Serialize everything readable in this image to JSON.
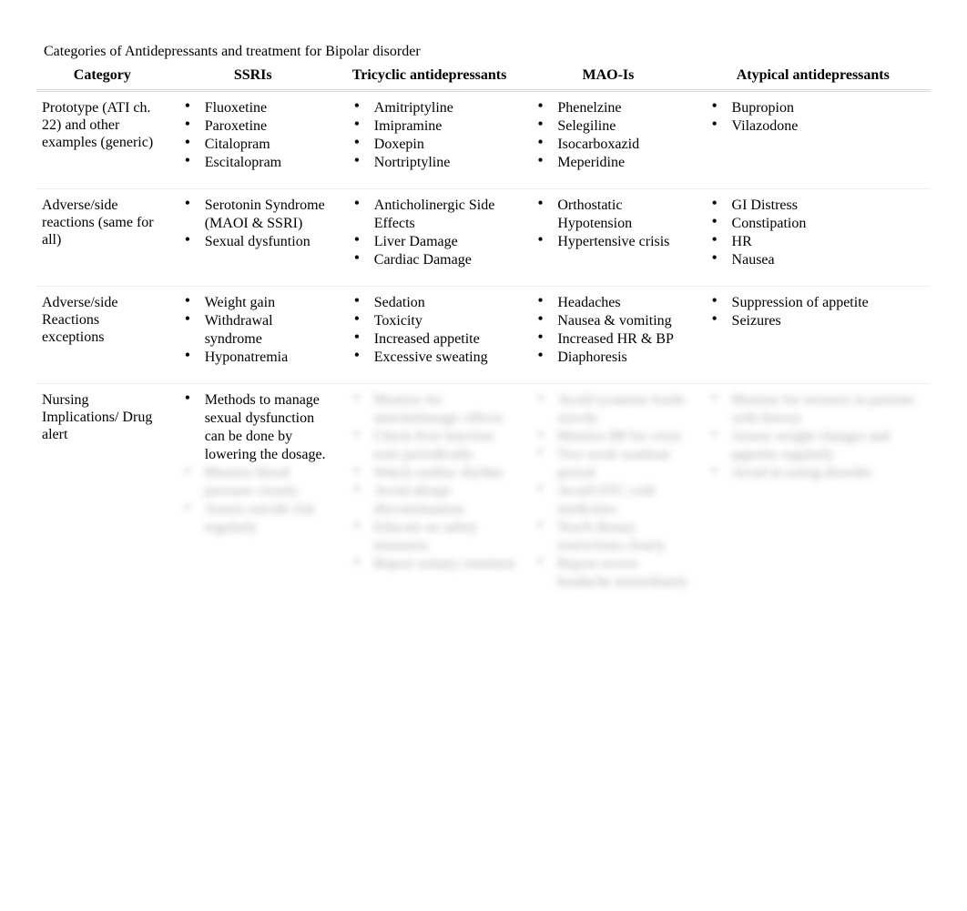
{
  "title": "Categories of Antidepressants and treatment for Bipolar disorder",
  "columns": [
    "Category",
    "SSRIs",
    "Tricyclic antidepressants",
    "MAO-Is",
    "Atypical antidepressants"
  ],
  "rows": [
    {
      "head": "Prototype (ATI ch. 22) and other examples (generic)",
      "cells": [
        [
          {
            "text": "Fluoxetine",
            "obscured": false
          },
          {
            "text": "Paroxetine",
            "obscured": false
          },
          {
            "text": "Citalopram",
            "obscured": false
          },
          {
            "text": "Escitalopram",
            "obscured": false
          }
        ],
        [
          {
            "text": "Amitriptyline",
            "obscured": false
          },
          {
            "text": "Imipramine",
            "obscured": false
          },
          {
            "text": "Doxepin",
            "obscured": false
          },
          {
            "text": "Nortriptyline",
            "obscured": false
          }
        ],
        [
          {
            "text": "Phenelzine",
            "obscured": false
          },
          {
            "text": "Selegiline",
            "obscured": false
          },
          {
            "text": "Isocarboxazid",
            "obscured": false
          },
          {
            "text": "Meperidine",
            "obscured": false
          }
        ],
        [
          {
            "text": "Bupropion",
            "obscured": false
          },
          {
            "text": "Vilazodone",
            "obscured": false
          }
        ]
      ]
    },
    {
      "head": "Adverse/side reactions (same for all)",
      "cells": [
        [
          {
            "text": "Serotonin Syndrome (MAOI & SSRI)",
            "obscured": false
          },
          {
            "text": "Sexual dysfuntion",
            "obscured": false
          }
        ],
        [
          {
            "text": "Anticholinergic Side Effects",
            "obscured": false
          },
          {
            "text": "Liver Damage",
            "obscured": false
          },
          {
            "text": "Cardiac Damage",
            "obscured": false
          }
        ],
        [
          {
            "text": "Orthostatic Hypotension",
            "obscured": false
          },
          {
            "text": "Hypertensive crisis",
            "obscured": false
          }
        ],
        [
          {
            "text": "GI Distress",
            "obscured": false
          },
          {
            "text": "Constipation",
            "obscured": false
          },
          {
            "text": "HR",
            "obscured": false
          },
          {
            "text": "Nausea",
            "obscured": false
          }
        ]
      ]
    },
    {
      "head": "Adverse/side Reactions exceptions",
      "cells": [
        [
          {
            "text": "Weight gain",
            "obscured": false
          },
          {
            "text": "Withdrawal syndrome",
            "obscured": false
          },
          {
            "text": "Hyponatremia",
            "obscured": false
          }
        ],
        [
          {
            "text": "Sedation",
            "obscured": false
          },
          {
            "text": "Toxicity",
            "obscured": false
          },
          {
            "text": "Increased appetite",
            "obscured": false
          },
          {
            "text": "Excessive sweating",
            "obscured": false
          }
        ],
        [
          {
            "text": "Headaches",
            "obscured": false
          },
          {
            "text": "Nausea & vomiting",
            "obscured": false
          },
          {
            "text": "Increased HR & BP",
            "obscured": false
          },
          {
            "text": "Diaphoresis",
            "obscured": false
          }
        ],
        [
          {
            "text": "Suppression of appetite",
            "obscured": false
          },
          {
            "text": "Seizures",
            "obscured": false
          }
        ]
      ]
    },
    {
      "head": "Nursing Implications/ Drug alert",
      "cells": [
        [
          {
            "text": "Methods to manage sexual dysfunction can be done by lowering the dosage.",
            "obscured": false
          },
          {
            "text": "Monitor blood pressure closely",
            "obscured": true
          },
          {
            "text": "Assess suicide risk regularly",
            "obscured": true
          }
        ],
        [
          {
            "text": "Monitor for anticholinergic effects",
            "obscured": true
          },
          {
            "text": "Check liver function tests periodically",
            "obscured": true
          },
          {
            "text": "Watch cardiac rhythm",
            "obscured": true
          },
          {
            "text": "Avoid abrupt discontinuation",
            "obscured": true
          },
          {
            "text": "Educate on safety measures",
            "obscured": true
          },
          {
            "text": "Report urinary retention",
            "obscured": true
          }
        ],
        [
          {
            "text": "Avoid tyramine foods strictly",
            "obscured": true
          },
          {
            "text": "Monitor BP for crisis",
            "obscured": true
          },
          {
            "text": "Two week washout period",
            "obscured": true
          },
          {
            "text": "Avoid OTC cold medicines",
            "obscured": true
          },
          {
            "text": "Teach dietary restrictions clearly",
            "obscured": true
          },
          {
            "text": "Report severe headache immediately",
            "obscured": true
          }
        ],
        [
          {
            "text": "Monitor for seizures in patients with history",
            "obscured": true
          },
          {
            "text": "Assess weight changes and appetite regularly",
            "obscured": true
          },
          {
            "text": "Avoid in eating disorder",
            "obscured": true
          }
        ]
      ]
    }
  ],
  "colors": {
    "background": "#ffffff",
    "text": "#000000",
    "header_border": "#d9d9d9",
    "row_border": "#f0f0f0"
  }
}
